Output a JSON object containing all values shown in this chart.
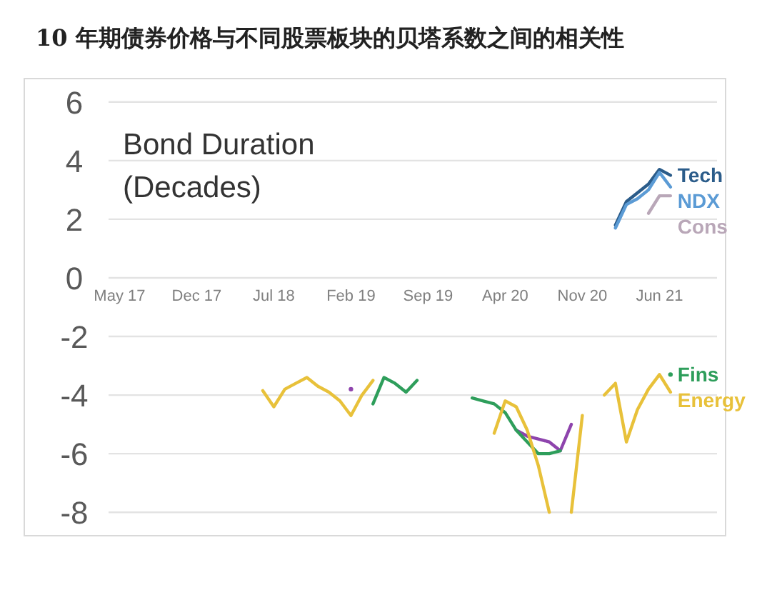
{
  "chart_data": {
    "type": "line",
    "title": "10 年期债券价格与不同股票板块的贝塔系数之间的相关性",
    "annotations": [
      "Bond Duration\n(Decades)"
    ],
    "x": [
      "2018-06",
      "2018-07",
      "2018-08",
      "2018-09",
      "2018-10",
      "2018-11",
      "2018-12",
      "2019-01",
      "2019-02",
      "2019-03",
      "2019-04",
      "2019-05",
      "2019-06",
      "2019-07",
      "2019-08",
      "2020-01",
      "2020-02",
      "2020-03",
      "2020-04",
      "2020-05",
      "2020-06",
      "2020-07",
      "2020-08",
      "2020-09",
      "2020-10",
      "2020-11",
      "2021-01",
      "2021-02",
      "2021-03",
      "2021-04",
      "2021-05",
      "2021-06",
      "2021-07"
    ],
    "series": [
      {
        "name": "Tech",
        "color": "#2b5c8a",
        "values": [
          null,
          null,
          null,
          null,
          null,
          null,
          null,
          null,
          null,
          null,
          null,
          null,
          null,
          null,
          null,
          null,
          null,
          null,
          null,
          null,
          null,
          null,
          null,
          null,
          null,
          null,
          null,
          1.8,
          2.6,
          2.9,
          3.2,
          3.7,
          3.5
        ]
      },
      {
        "name": "NDX",
        "color": "#5b9bd5",
        "values": [
          null,
          null,
          null,
          null,
          null,
          null,
          null,
          null,
          null,
          null,
          null,
          null,
          null,
          null,
          null,
          null,
          null,
          null,
          null,
          null,
          null,
          null,
          null,
          null,
          null,
          null,
          null,
          1.7,
          2.5,
          2.7,
          3.0,
          3.6,
          3.1
        ]
      },
      {
        "name": "Cons",
        "color": "#b9a7b8",
        "values": [
          null,
          null,
          null,
          null,
          null,
          null,
          null,
          null,
          null,
          null,
          null,
          null,
          null,
          null,
          null,
          null,
          null,
          null,
          null,
          null,
          null,
          null,
          null,
          null,
          null,
          null,
          null,
          null,
          null,
          null,
          2.2,
          2.8,
          2.8
        ]
      },
      {
        "color": "#8e44ad",
        "values": [
          null,
          null,
          null,
          null,
          null,
          null,
          null,
          null,
          -3.8,
          null,
          null,
          null,
          null,
          null,
          null,
          null,
          null,
          null,
          null,
          -5.2,
          -5.4,
          -5.5,
          -5.6,
          -5.9,
          -5.0,
          null,
          null,
          null,
          null,
          null,
          null,
          null,
          null
        ]
      },
      {
        "name": "Fins",
        "color": "#2e9e5b",
        "values": [
          null,
          null,
          null,
          null,
          null,
          null,
          null,
          null,
          null,
          null,
          -4.3,
          -3.4,
          -3.6,
          -3.9,
          -3.5,
          -4.1,
          -4.2,
          -4.3,
          -4.6,
          -5.2,
          -5.6,
          -6.0,
          -6.0,
          -5.9,
          null,
          null,
          null,
          null,
          null,
          null,
          null,
          null,
          -3.3
        ]
      },
      {
        "name": "Energy",
        "color": "#e8c13a",
        "values": [
          -3.85,
          -4.4,
          -3.8,
          -3.6,
          -3.4,
          -3.7,
          -3.9,
          -4.2,
          -4.7,
          -4.0,
          -3.5,
          null,
          null,
          null,
          null,
          null,
          null,
          -5.3,
          -4.2,
          -4.4,
          -5.2,
          -6.4,
          -8.0,
          null,
          -8.0,
          -4.7,
          -4.0,
          -3.6,
          -5.6,
          -4.5,
          -3.8,
          -3.3,
          -3.9
        ]
      }
    ],
    "xlim": [
      "2017-04",
      "2021-12"
    ],
    "xticks": [
      {
        "value": "2017-05",
        "label": "May 17"
      },
      {
        "value": "2017-12",
        "label": "Dec 17"
      },
      {
        "value": "2018-07",
        "label": "Jul 18"
      },
      {
        "value": "2019-02",
        "label": "Feb 19"
      },
      {
        "value": "2019-09",
        "label": "Sep 19"
      },
      {
        "value": "2020-04",
        "label": "Apr 20"
      },
      {
        "value": "2020-11",
        "label": "Nov 20"
      },
      {
        "value": "2021-06",
        "label": "Jun 21"
      }
    ],
    "ylim": [
      -8.8,
      6.8
    ],
    "yticks": [
      6,
      4,
      2,
      0,
      -2,
      -4,
      -6,
      -8
    ],
    "grid": "y"
  }
}
